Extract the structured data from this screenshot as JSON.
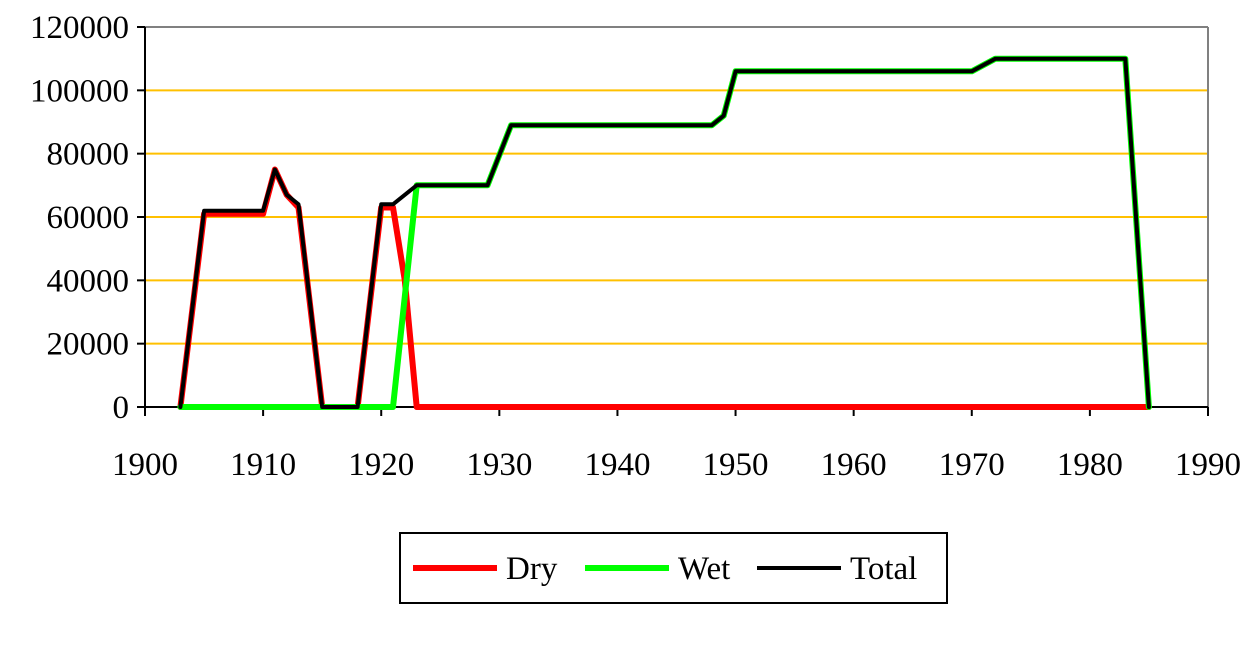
{
  "chart_data": {
    "type": "line",
    "title": "",
    "xlabel": "",
    "ylabel": "",
    "xlim": [
      1900,
      1990
    ],
    "ylim": [
      0,
      120000
    ],
    "x_ticks": [
      "1900",
      "1910",
      "1920",
      "1930",
      "1940",
      "1950",
      "1960",
      "1970",
      "1980",
      "1990"
    ],
    "y_ticks": [
      "0",
      "20000",
      "40000",
      "60000",
      "80000",
      "100000",
      "120000"
    ],
    "grid": "horizontal",
    "grid_color": "#FFC000",
    "legend_position": "bottom",
    "series": [
      {
        "name": "Dry",
        "color": "#FF0000",
        "points": [
          [
            1903,
            0
          ],
          [
            1905,
            61000
          ],
          [
            1910,
            61000
          ],
          [
            1911,
            75000
          ],
          [
            1912,
            67000
          ],
          [
            1913,
            63000
          ],
          [
            1915,
            0
          ],
          [
            1918,
            0
          ],
          [
            1920,
            63000
          ],
          [
            1921,
            63000
          ],
          [
            1922,
            40000
          ],
          [
            1923,
            0
          ],
          [
            1985,
            0
          ]
        ]
      },
      {
        "name": "Wet",
        "color": "#00FF00",
        "points": [
          [
            1903,
            0
          ],
          [
            1921,
            0
          ],
          [
            1923,
            70000
          ],
          [
            1929,
            70000
          ],
          [
            1931,
            89000
          ],
          [
            1948,
            89000
          ],
          [
            1949,
            92000
          ],
          [
            1950,
            106000
          ],
          [
            1970,
            106000
          ],
          [
            1972,
            110000
          ],
          [
            1983,
            110000
          ],
          [
            1985,
            0
          ]
        ]
      },
      {
        "name": "Total",
        "color": "#000000",
        "points": [
          [
            1903,
            0
          ],
          [
            1905,
            62000
          ],
          [
            1910,
            62000
          ],
          [
            1911,
            75000
          ],
          [
            1912,
            67000
          ],
          [
            1913,
            64000
          ],
          [
            1915,
            0
          ],
          [
            1918,
            0
          ],
          [
            1920,
            64000
          ],
          [
            1921,
            64000
          ],
          [
            1923,
            70000
          ],
          [
            1929,
            70000
          ],
          [
            1931,
            89000
          ],
          [
            1948,
            89000
          ],
          [
            1949,
            92000
          ],
          [
            1950,
            106000
          ],
          [
            1970,
            106000
          ],
          [
            1972,
            110000
          ],
          [
            1983,
            110000
          ],
          [
            1985,
            0
          ]
        ]
      }
    ]
  }
}
